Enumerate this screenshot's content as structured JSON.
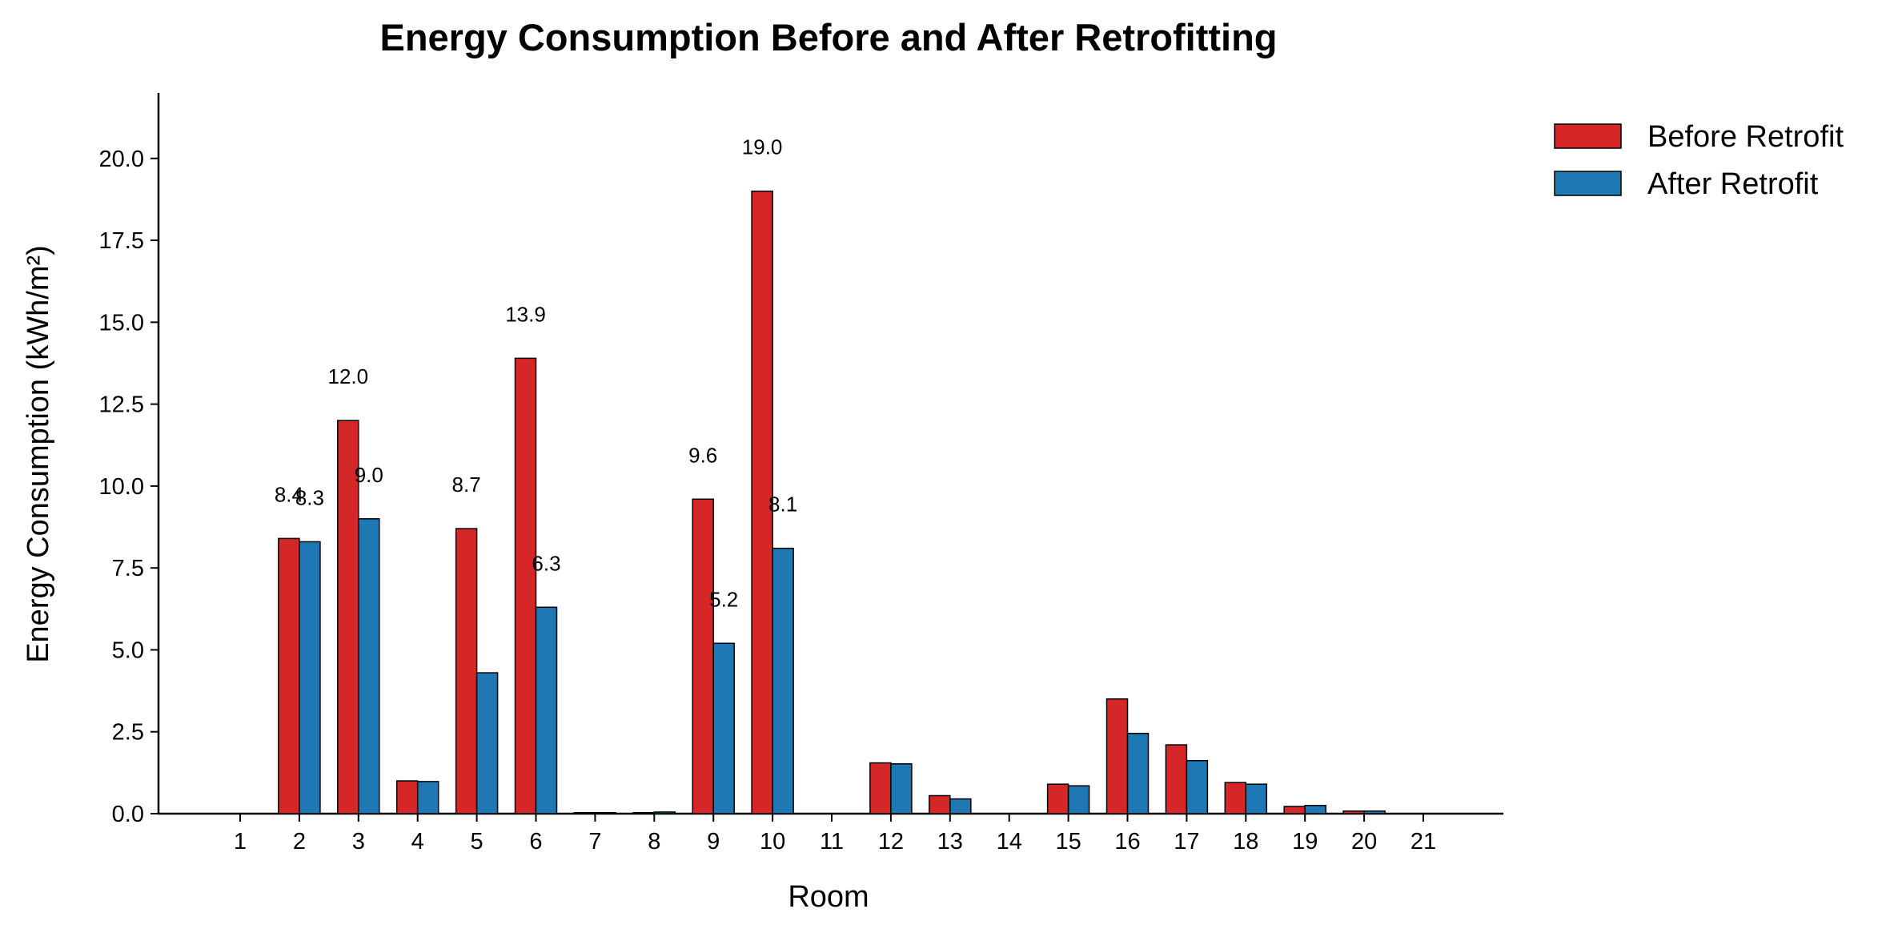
{
  "chart_data": {
    "type": "bar",
    "title": "Energy Consumption Before and After Retrofitting",
    "xlabel": "Room",
    "ylabel": "Energy Consumption (kWh/m²)",
    "categories": [
      "1",
      "2",
      "3",
      "4",
      "5",
      "6",
      "7",
      "8",
      "9",
      "10",
      "11",
      "12",
      "13",
      "14",
      "15",
      "16",
      "17",
      "18",
      "19",
      "20",
      "21"
    ],
    "ylim": [
      0,
      22
    ],
    "yticks": [
      "0.0",
      "2.5",
      "5.0",
      "7.5",
      "10.0",
      "12.5",
      "15.0",
      "17.5",
      "20.0"
    ],
    "grid": false,
    "legend_position": "top-right",
    "series": [
      {
        "name": "Before Retrofit",
        "color": "#d62728",
        "values": [
          0.0,
          8.4,
          12.0,
          1.0,
          8.7,
          13.9,
          0.03,
          0.03,
          9.6,
          19.0,
          0.0,
          1.55,
          0.55,
          0.0,
          0.9,
          3.5,
          2.1,
          0.95,
          0.22,
          0.08,
          0.0
        ],
        "labels": [
          null,
          "8.4",
          "12.0",
          null,
          "8.7",
          "13.9",
          null,
          null,
          "9.6",
          "19.0",
          null,
          null,
          null,
          null,
          null,
          null,
          null,
          null,
          null,
          null,
          null
        ]
      },
      {
        "name": "After Retrofit",
        "color": "#1f77b4",
        "values": [
          0.0,
          8.3,
          9.0,
          0.98,
          4.3,
          6.3,
          0.03,
          0.05,
          5.2,
          8.1,
          0.0,
          1.52,
          0.45,
          0.0,
          0.85,
          2.45,
          1.62,
          0.9,
          0.25,
          0.08,
          0.0
        ],
        "labels": [
          null,
          "8.3",
          "9.0",
          null,
          null,
          "6.3",
          null,
          null,
          "5.2",
          "8.1",
          null,
          null,
          null,
          null,
          null,
          null,
          null,
          null,
          null,
          null,
          null
        ]
      }
    ]
  }
}
